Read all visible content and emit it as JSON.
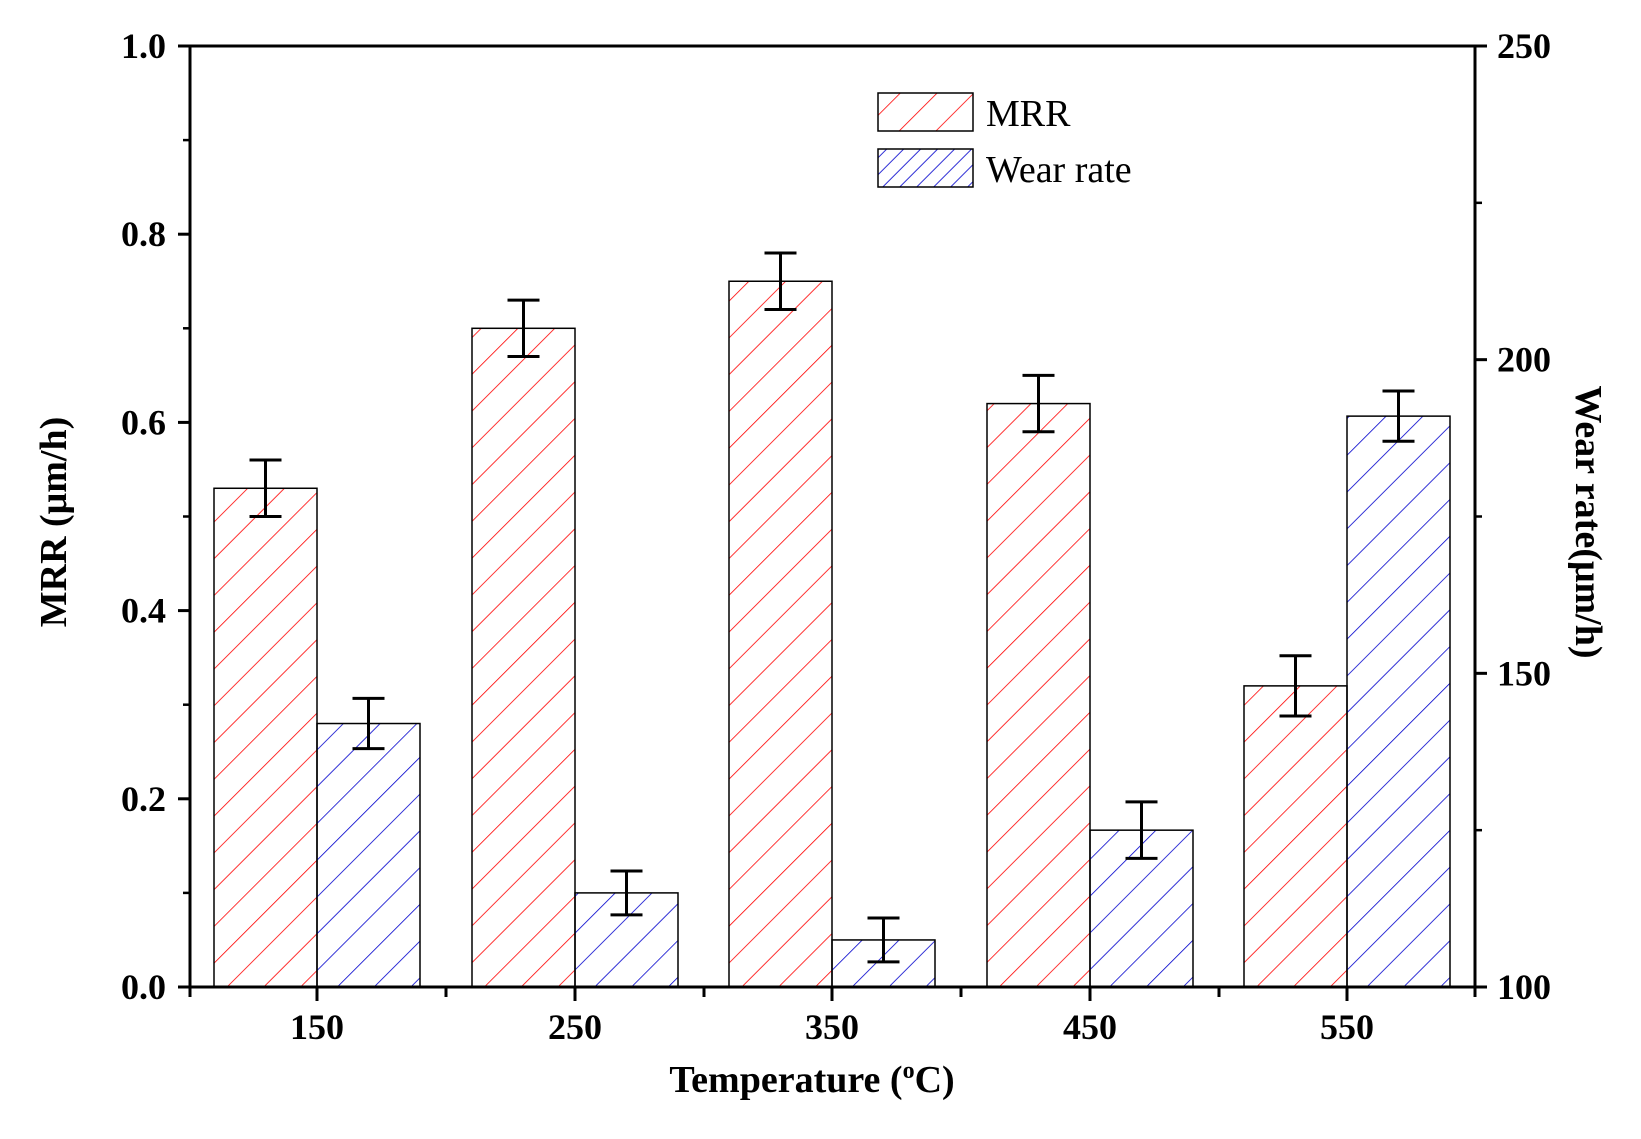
{
  "chart_data": {
    "type": "bar",
    "categories": [
      "150",
      "250",
      "350",
      "450",
      "550"
    ],
    "series": [
      {
        "name": "MRR",
        "axis": "left",
        "color": "#ff0000",
        "hatch": "forward-diagonal",
        "values": [
          0.53,
          0.7,
          0.75,
          0.62,
          0.32
        ],
        "errors": [
          0.03,
          0.03,
          0.03,
          0.03,
          0.032
        ]
      },
      {
        "name": "Wear rate",
        "axis": "right",
        "color": "#0000cc",
        "hatch": "forward-diagonal",
        "values": [
          142,
          115,
          107.5,
          125,
          191
        ],
        "errors": [
          4,
          3.5,
          3.5,
          4.5,
          4
        ]
      }
    ],
    "xlabel_prefix": "Temperature (",
    "xlabel_sup": "o",
    "xlabel_suffix": "C)",
    "ylabel_left": "MRR (μm/h)",
    "ylabel_right": "Wear rate(μm/h)",
    "ylim_left": [
      0,
      1.0
    ],
    "ylim_right": [
      100,
      250
    ],
    "yticks_left": [
      "0.0",
      "0.2",
      "0.4",
      "0.6",
      "0.8",
      "1.0"
    ],
    "yticks_right": [
      "100",
      "150",
      "200",
      "250"
    ],
    "grid": false,
    "legend_position": "top-center"
  }
}
